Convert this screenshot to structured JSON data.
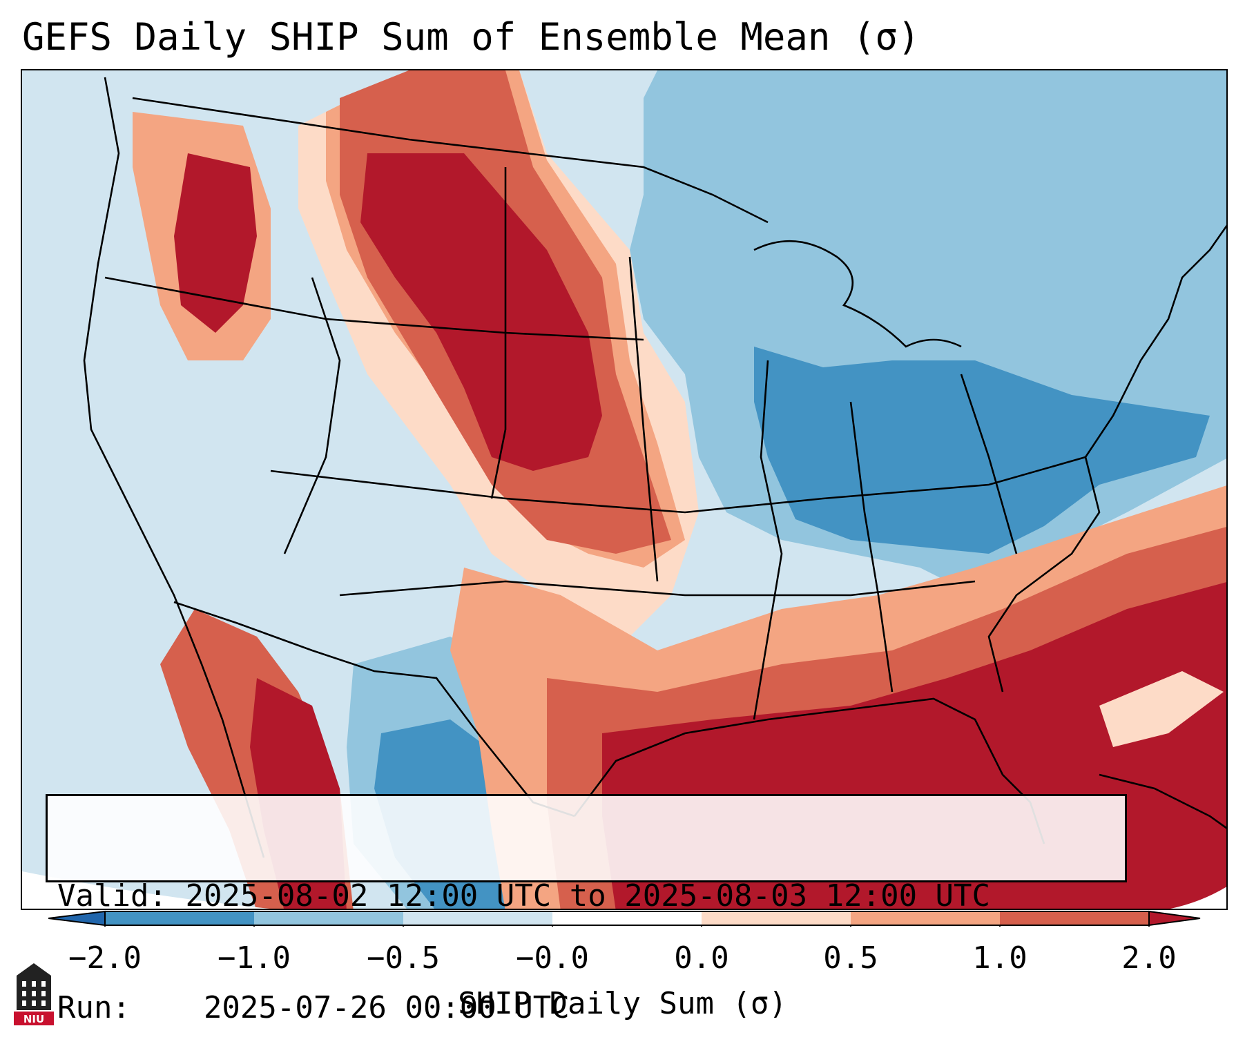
{
  "title": "GEFS Daily SHIP Sum of Ensemble Mean (σ)",
  "info": {
    "valid_label": "Valid:",
    "valid_value": "2025-08-02 12:00 UTC to 2025-08-03 12:00 UTC",
    "run_label": "Run:",
    "run_value": "2025-07-26 00:00 UTC"
  },
  "colorbar": {
    "label": "SHIP Daily Sum (σ)",
    "ticks": [
      "−2.0",
      "−1.0",
      "−0.5",
      "−0.0",
      "0.0",
      "0.5",
      "1.0",
      "2.0"
    ],
    "colors": [
      "#2166ac",
      "#4393c3",
      "#92c5de",
      "#d1e5f0",
      "#ffffff",
      "#fddbc7",
      "#f4a582",
      "#d6604d",
      "#b2182b"
    ]
  },
  "logo": {
    "text": "NIU",
    "icon": "niu-tower-logo"
  }
}
